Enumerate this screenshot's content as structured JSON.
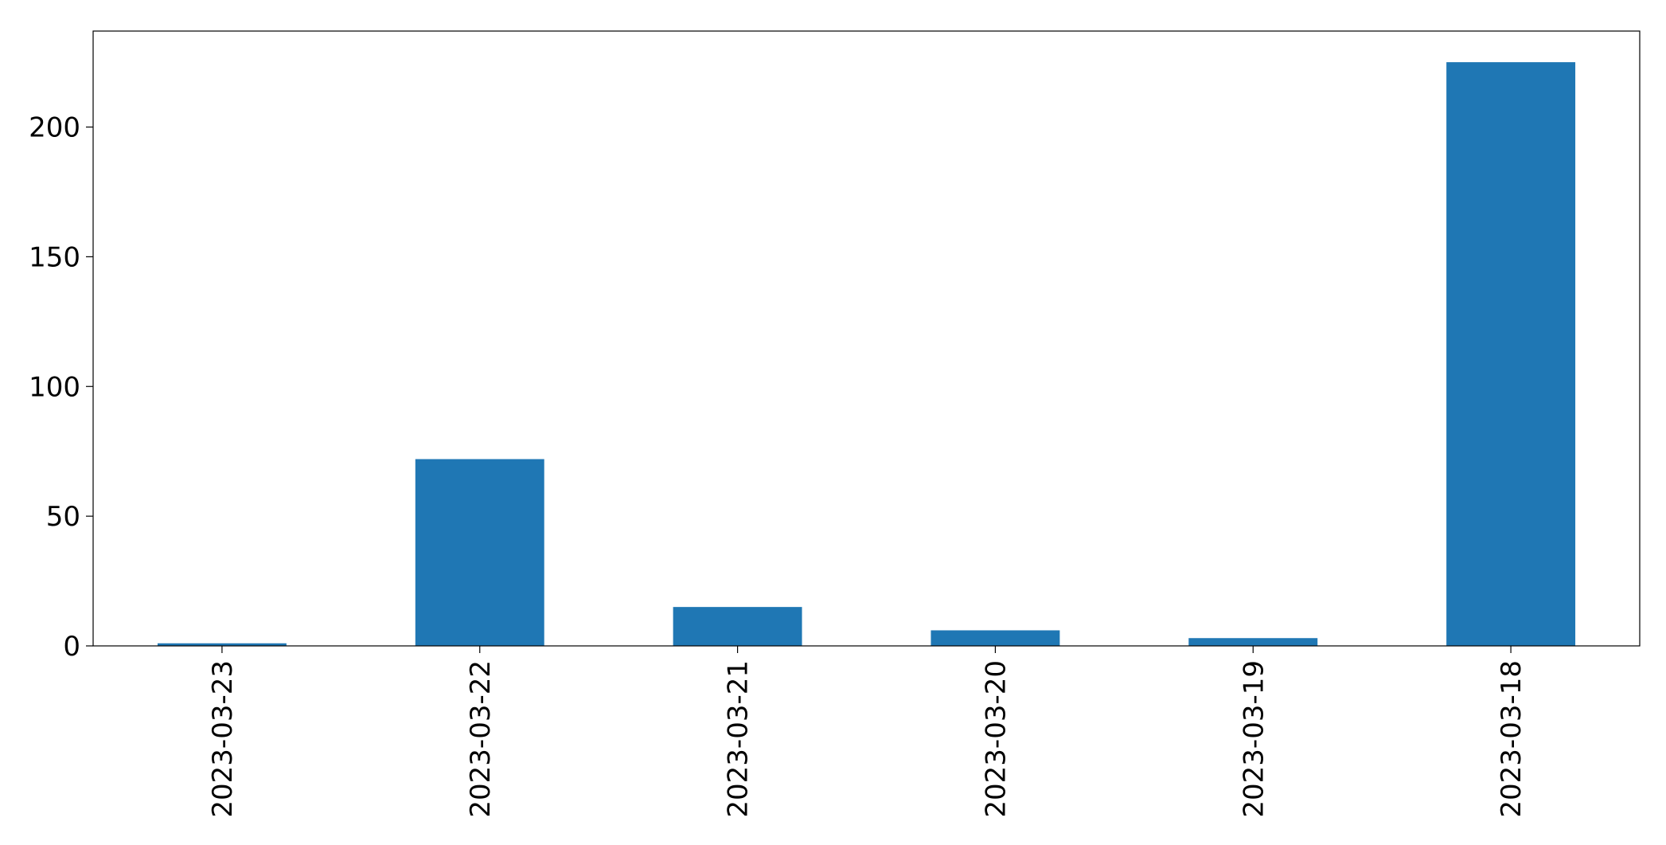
{
  "chart_data": {
    "type": "bar",
    "title": "",
    "xlabel": "",
    "ylabel": "",
    "categories": [
      "2023-03-23",
      "2023-03-22",
      "2023-03-21",
      "2023-03-20",
      "2023-03-19",
      "2023-03-18"
    ],
    "values": [
      1,
      72,
      15,
      6,
      3,
      225
    ],
    "ylim": [
      0,
      237
    ],
    "yticks": [
      0,
      50,
      100,
      150,
      200
    ],
    "bar_color": "#1f77b4",
    "grid": false,
    "legend": "none"
  }
}
